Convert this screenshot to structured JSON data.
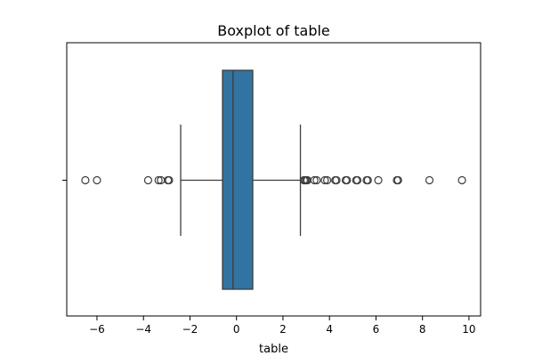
{
  "chart_data": {
    "type": "boxplot",
    "orientation": "horizontal",
    "title": "Boxplot of table",
    "xlabel": "table",
    "ylabel": "",
    "xlim": [
      -7.3,
      10.5
    ],
    "xticks": [
      -6,
      -4,
      -2,
      0,
      2,
      4,
      6,
      8,
      10
    ],
    "xtick_labels": [
      "−6",
      "−4",
      "−2",
      "0",
      "2",
      "4",
      "6",
      "8",
      "10"
    ],
    "box": {
      "q1": -0.6,
      "median": -0.15,
      "q3": 0.7,
      "whisker_low": -2.4,
      "whisker_high": 2.75
    },
    "outliers": [
      -6.5,
      -6.0,
      -3.8,
      -3.35,
      -3.25,
      -2.95,
      -2.9,
      2.9,
      2.95,
      3.0,
      3.05,
      3.35,
      3.45,
      3.8,
      3.9,
      4.25,
      4.3,
      4.7,
      4.75,
      5.15,
      5.2,
      5.6,
      5.65,
      6.1,
      6.9,
      6.95,
      8.3,
      9.7
    ],
    "colors": {
      "box_fill": "#3274a1",
      "line": "#3d3d3d",
      "outlier_edge": "#3d3d3d"
    },
    "grid": false
  }
}
